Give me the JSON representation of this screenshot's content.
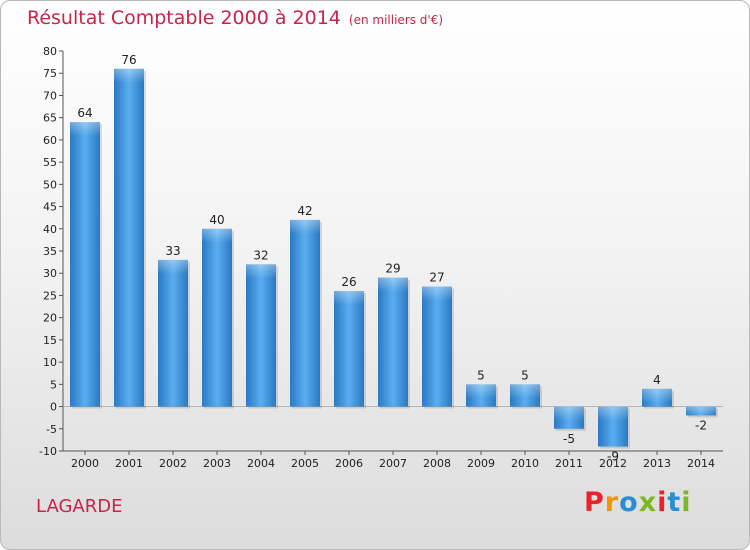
{
  "title": "Résultat Comptable 2000 à 2014",
  "unit": "(en milliers d'€)",
  "commune": "LAGARDE",
  "logo": {
    "text": "Proxiti",
    "colors": [
      "#e8232a",
      "#f29400",
      "#2a8fd0",
      "#7ab729",
      "#e8232a",
      "#2a8fd0",
      "#7ab729"
    ]
  },
  "chart_data": {
    "type": "bar",
    "categories": [
      "2000",
      "2001",
      "2002",
      "2003",
      "2004",
      "2005",
      "2006",
      "2007",
      "2008",
      "2009",
      "2010",
      "2011",
      "2012",
      "2013",
      "2014"
    ],
    "values": [
      64,
      76,
      33,
      40,
      32,
      42,
      26,
      29,
      27,
      5,
      5,
      -5,
      -9,
      4,
      -2
    ],
    "ylim": [
      -10,
      80
    ],
    "yticks": [
      -10,
      -5,
      0,
      5,
      10,
      15,
      20,
      25,
      30,
      35,
      40,
      45,
      50,
      55,
      60,
      65,
      70,
      75,
      80
    ],
    "grid": false,
    "bar_color": "#3a8fd6"
  }
}
